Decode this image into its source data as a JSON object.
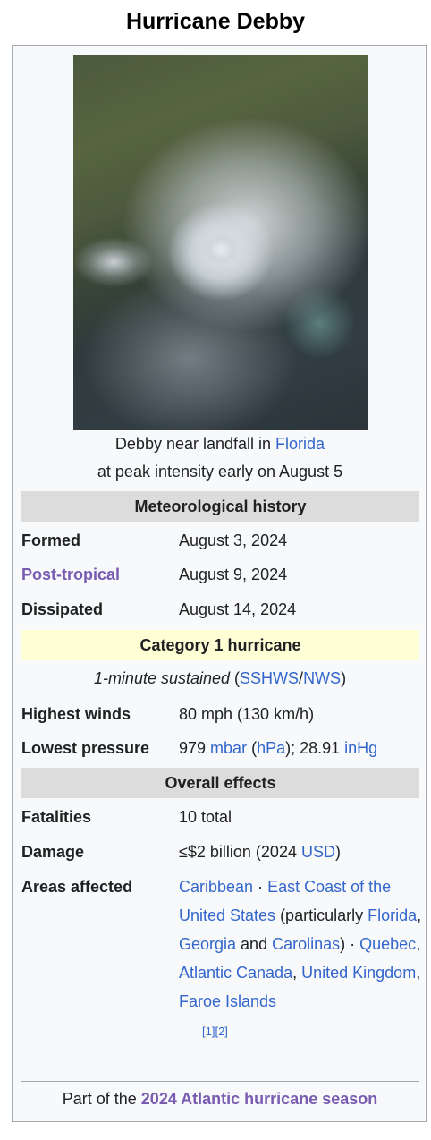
{
  "title": "Hurricane Debby",
  "image": {
    "icon": "satellite-image"
  },
  "caption": {
    "pre": "Debby near landfall in ",
    "link": "Florida",
    "post": " at peak intensity early on August 5"
  },
  "met_history": {
    "header": "Meteorological history",
    "formed_label": "Formed",
    "formed_value": "August 3, 2024",
    "posttropical_label": "Post-tropical",
    "posttropical_value": "August 9, 2024",
    "dissipated_label": "Dissipated",
    "dissipated_value": "August 14, 2024"
  },
  "category": {
    "header": "Category 1 hurricane",
    "sustained_pre": "1-minute sustained",
    "open_paren": " (",
    "link1": "SSHWS",
    "slash": "/",
    "link2": "NWS",
    "close_paren": ")",
    "winds_label": "Highest winds",
    "winds_value": "80 mph (130 km/h)",
    "pressure_label": "Lowest pressure",
    "pressure_pre": "979 ",
    "pressure_link1": "mbar",
    "pressure_open": " (",
    "pressure_link2": "hPa",
    "pressure_mid": "); 28.91 ",
    "pressure_link3": "inHg"
  },
  "effects": {
    "header": "Overall effects",
    "fatalities_label": "Fatalities",
    "fatalities_value": "10 total",
    "damage_label": "Damage",
    "damage_pre": "≤$2 billion (2024 ",
    "damage_link": "USD",
    "damage_post": ")",
    "areas_label": "Areas affected",
    "areas": {
      "caribbean": "Caribbean",
      "sep1": " · ",
      "east_coast": "East Coast of the United States",
      "particularly": " (particularly ",
      "florida": "Florida",
      "comma1": ", ",
      "georgia": "Georgia",
      "and": " and ",
      "carolinas": "Carolinas",
      "close_sep": ") · ",
      "quebec": "Quebec",
      "comma2": ", ",
      "atlantic_canada": "Atlantic Canada",
      "comma3": ", ",
      "uk": "United Kingdom",
      "comma4": ", ",
      "faroe": "Faroe Islands",
      "ref1": "[1]",
      "ref2": "[2]"
    }
  },
  "footer": {
    "pre": "Part of the ",
    "link": "2024 Atlantic hurricane season"
  }
}
